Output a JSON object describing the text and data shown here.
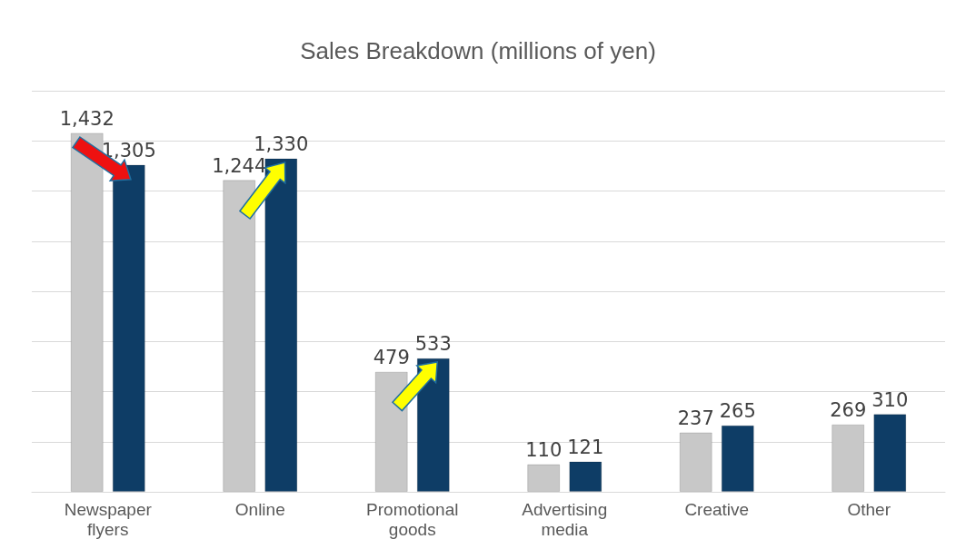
{
  "chart_data": {
    "type": "bar",
    "title": "Sales Breakdown (millions of yen)",
    "categories": [
      "Newspaper flyers",
      "Online",
      "Promotional goods",
      "Advertising media",
      "Creative",
      "Other"
    ],
    "series": [
      {
        "color": "#c8c8c8",
        "values": [
          1432,
          1244,
          479,
          110,
          237,
          269
        ],
        "value_labels": [
          "1,432",
          "1,244",
          "479",
          "110",
          "237",
          "269"
        ]
      },
      {
        "color": "#0e3d66",
        "values": [
          1305,
          1330,
          533,
          121,
          265,
          310
        ],
        "value_labels": [
          "1,305",
          "1,330",
          "533",
          "121",
          "265",
          "310"
        ]
      }
    ],
    "ylim": [
      0,
      1600
    ],
    "yticks": [
      {
        "value": 0,
        "label": null
      },
      {
        "value": 200,
        "label": null
      },
      {
        "value": 400,
        "label": null
      },
      {
        "value": 600,
        "label": null
      },
      {
        "value": 800,
        "label": null
      },
      {
        "value": 1000,
        "label": null
      },
      {
        "value": 1200,
        "label": null
      },
      {
        "value": 1400,
        "label": null
      },
      {
        "value": 1600,
        "label": null
      }
    ],
    "grid": "y"
  }
}
